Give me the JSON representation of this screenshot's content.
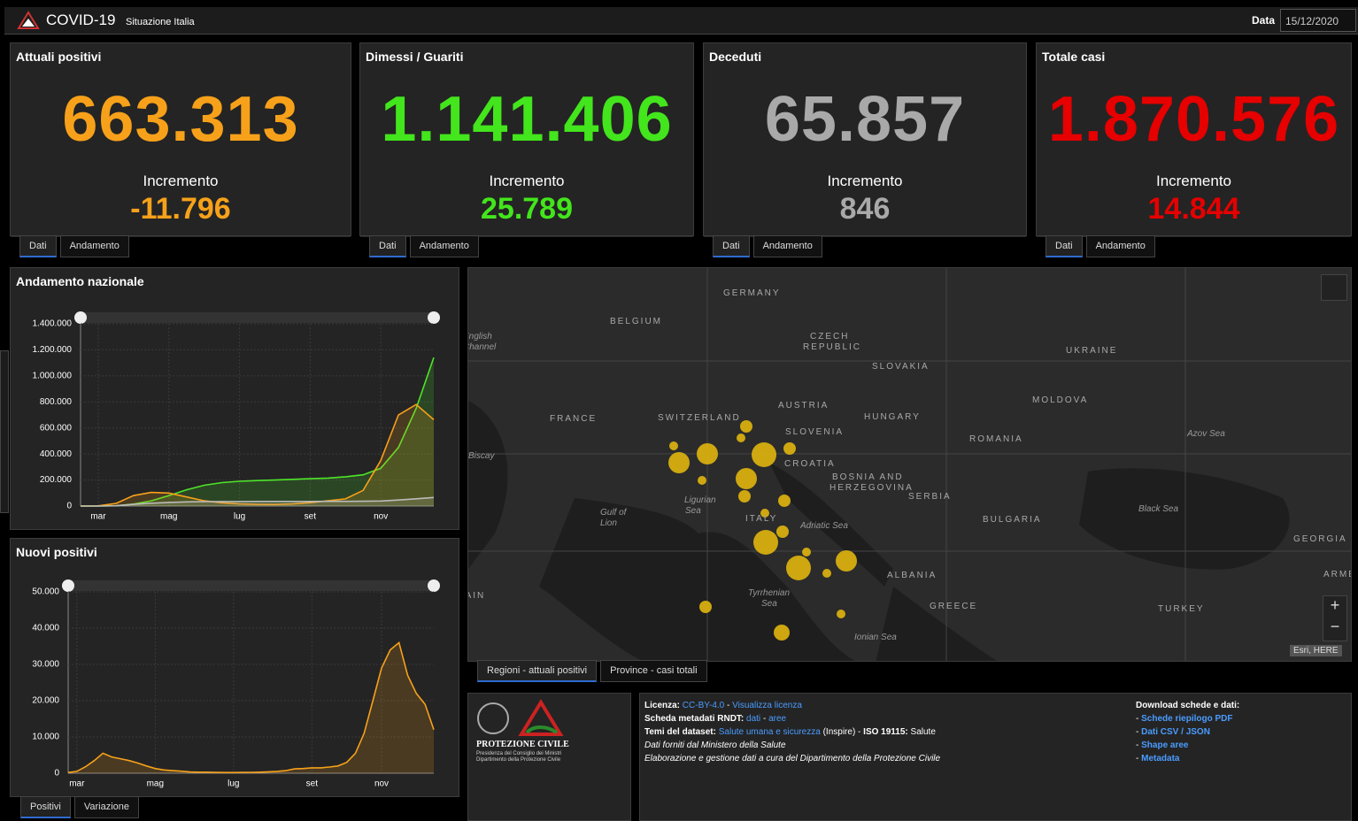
{
  "header": {
    "title": "COVID-19",
    "subtitle": "Situazione Italia",
    "date_label": "Data",
    "date": "15/12/2020"
  },
  "cards": [
    {
      "title": "Attuali positivi",
      "value": "663.313",
      "increment_label": "Incremento",
      "increment": "-11.796",
      "color": "#f7a11a",
      "tabs": [
        "Dati",
        "Andamento"
      ]
    },
    {
      "title": "Dimessi / Guariti",
      "value": "1.141.406",
      "increment_label": "Incremento",
      "increment": "25.789",
      "color": "#43e51c",
      "tabs": [
        "Dati",
        "Andamento"
      ]
    },
    {
      "title": "Deceduti",
      "value": "65.857",
      "increment_label": "Incremento",
      "increment": "846",
      "color": "#a9a9a9",
      "tabs": [
        "Dati",
        "Andamento"
      ]
    },
    {
      "title": "Totale casi",
      "value": "1.870.576",
      "increment_label": "Incremento",
      "increment": "14.844",
      "color": "#e60000",
      "tabs": [
        "Dati",
        "Andamento"
      ]
    }
  ],
  "chart_data": [
    {
      "type": "line",
      "title": "Andamento nazionale",
      "categories": [
        null,
        "mar",
        null,
        null,
        null,
        "mag",
        null,
        null,
        null,
        "lug",
        null,
        null,
        null,
        "set",
        null,
        null,
        null,
        "nov",
        null,
        null,
        null
      ],
      "series": [
        {
          "color": "#4fe52a",
          "values": [
            0,
            0,
            2000,
            15000,
            40000,
            80000,
            125000,
            160000,
            180000,
            190000,
            196000,
            200000,
            205000,
            210000,
            215000,
            225000,
            240000,
            290000,
            450000,
            750000,
            1141406
          ]
        },
        {
          "color": "#f7a11a",
          "values": [
            0,
            1500,
            20000,
            80000,
            105000,
            100000,
            70000,
            40000,
            25000,
            16000,
            13000,
            12500,
            16000,
            26000,
            40000,
            55000,
            120000,
            350000,
            700000,
            780000,
            663313
          ]
        },
        {
          "color": "#bbbbbb",
          "values": [
            0,
            30,
            2000,
            13000,
            22000,
            28000,
            32000,
            34000,
            35000,
            35000,
            35200,
            35300,
            35450,
            35500,
            35700,
            36000,
            36500,
            39000,
            46000,
            56000,
            65857
          ]
        }
      ],
      "ylim": [
        0,
        1400000
      ],
      "yticks": [
        0,
        {
          "value": 200000,
          "label": "200.000"
        },
        {
          "value": 400000,
          "label": "400.000"
        },
        {
          "value": 600000,
          "label": "600.000"
        },
        {
          "value": 800000,
          "label": "800.000"
        },
        {
          "value": 1000000,
          "label": "1.000.000"
        },
        {
          "value": 1200000,
          "label": "1.200.000"
        },
        {
          "value": 1400000,
          "label": "1.400.000"
        }
      ],
      "grid": true,
      "tabs": []
    },
    {
      "type": "line",
      "title": "Nuovi positivi",
      "categories": [
        null,
        "mar",
        null,
        null,
        null,
        null,
        null,
        null,
        null,
        null,
        "mag",
        null,
        null,
        null,
        null,
        null,
        null,
        null,
        null,
        "lug",
        null,
        null,
        null,
        null,
        null,
        null,
        null,
        null,
        "set",
        null,
        null,
        null,
        null,
        null,
        null,
        null,
        "nov",
        null,
        null,
        null,
        null,
        null,
        null
      ],
      "series": [
        {
          "color": "#f7a11a",
          "values": [
            200,
            500,
            1800,
            3500,
            5500,
            4500,
            4000,
            3500,
            2800,
            2000,
            1300,
            900,
            700,
            550,
            350,
            300,
            300,
            220,
            200,
            200,
            230,
            250,
            300,
            400,
            500,
            700,
            1200,
            1300,
            1500,
            1500,
            1700,
            2000,
            3000,
            5500,
            11000,
            20000,
            29000,
            34000,
            36000,
            27000,
            22000,
            19000,
            12000
          ]
        }
      ],
      "ylim": [
        0,
        50000
      ],
      "yticks": [
        0,
        {
          "value": 10000,
          "label": "10.000"
        },
        {
          "value": 20000,
          "label": "20.000"
        },
        {
          "value": 30000,
          "label": "30.000"
        },
        {
          "value": 40000,
          "label": "40.000"
        },
        {
          "value": 50000,
          "label": "50.000"
        }
      ],
      "grid": true,
      "tabs": [
        "Positivi",
        "Variazione"
      ]
    }
  ],
  "map": {
    "labels": [
      "GERMANY",
      "BELGIUM",
      "English",
      "Channel",
      "CZECH",
      "REPUBLIC",
      "SLOVAKIA",
      "UKRAINE",
      "MOLDOVA",
      "FRANCE",
      "SWITZERLAND",
      "AUSTRIA",
      "HUNGARY",
      "SLOVENIA",
      "CROATIA",
      "ROMANIA",
      "Azov Sea",
      "Biscay",
      "BOSNIA AND",
      "HERZEGOVINA",
      "SERBIA",
      "Ligurian",
      "Sea",
      "ITALY",
      "Adriatic Sea",
      "BULGARIA",
      "Black Sea",
      "Gulf of",
      "Lion",
      "GEORGIA",
      "ARMENIA",
      "SPAIN",
      "ALBANIA",
      "Tyrrhenian",
      "Sea",
      "GREECE",
      "TURKEY",
      "Ionian Sea"
    ],
    "attribution": "Esri, HERE",
    "zoom": [
      "+",
      "−"
    ],
    "tabs": [
      "Regioni - attuali positivi",
      "Province - casi totali"
    ]
  },
  "footer": {
    "logo": [
      "PROTEZIONE CIVILE",
      "Presidenza del Consiglio dei Ministri",
      "Dipartimento della Protezione Civile"
    ],
    "info": [
      [
        {
          "t": "Licenza:",
          "s": "b"
        },
        {
          "t": "CC-BY-4.0",
          "s": "a"
        },
        {
          "t": "-",
          "s": "p"
        },
        {
          "t": "Visualizza licenza",
          "s": "a"
        }
      ],
      [
        {
          "t": "Scheda metadati RNDT:",
          "s": "b"
        },
        {
          "t": "dati",
          "s": "a"
        },
        {
          "t": "-",
          "s": "p"
        },
        {
          "t": "aree",
          "s": "a"
        }
      ],
      [
        {
          "t": "Temi del dataset:",
          "s": "b"
        },
        {
          "t": "Salute umana e sicurezza",
          "s": "a"
        },
        {
          "t": "(Inspire) -",
          "s": "p"
        },
        {
          "t": "ISO 19115:",
          "s": "b"
        },
        {
          "t": "Salute",
          "s": "p"
        }
      ],
      [
        {
          "t": "Dati forniti dal Ministero della Salute",
          "s": "i"
        }
      ],
      [
        {
          "t": "Elaborazione e gestione dati a cura del Dipartimento della Protezione Civile",
          "s": "i"
        }
      ]
    ],
    "download_title": "Download schede e dati:",
    "dash": "-",
    "downloads": [
      "Schede riepilogo PDF",
      "Dati CSV / JSON",
      "Shape aree",
      "Metadata"
    ]
  }
}
